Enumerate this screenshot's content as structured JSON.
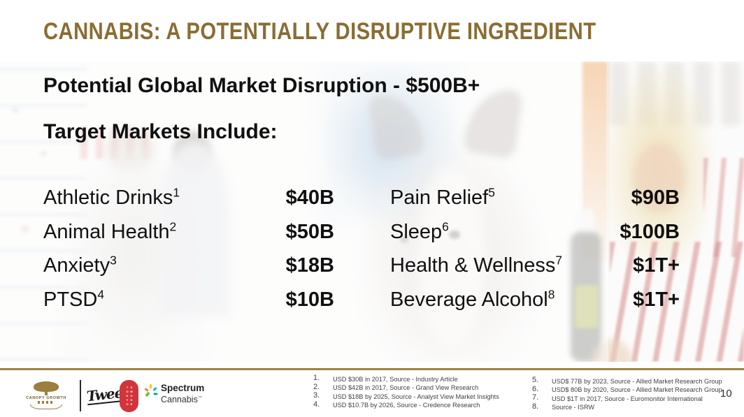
{
  "title": "CANNABIS: A POTENTIALLY DISRUPTIVE INGREDIENT",
  "heading": "Potential Global Market Disruption - $500B+",
  "subheading": "Target Markets Include:",
  "markets": {
    "left": [
      {
        "name": "Athletic Drinks",
        "sup": "1",
        "value": "$40B"
      },
      {
        "name": "Animal Health",
        "sup": "2",
        "value": "$50B"
      },
      {
        "name": "Anxiety",
        "sup": "3",
        "value": "$18B"
      },
      {
        "name": "PTSD",
        "sup": "4",
        "value": "$10B"
      }
    ],
    "right": [
      {
        "name": "Pain Relief",
        "sup": "5",
        "value": "$90B"
      },
      {
        "name": "Sleep",
        "sup": "6",
        "value": "$100B"
      },
      {
        "name": "Health & Wellness",
        "sup": "7",
        "value": "$1T+"
      },
      {
        "name": "Beverage Alcohol",
        "sup": "8",
        "value": "$1T+"
      }
    ]
  },
  "footnotes": {
    "left": [
      {
        "num": "1.",
        "text": "USD $30B in 2017, Source - Industry Article"
      },
      {
        "num": "2.",
        "text": "USD $42B in 2017, Source - Grand View Research"
      },
      {
        "num": "3.",
        "text": "USD $18B by 2025, Source - Analyst View Market Insights"
      },
      {
        "num": "4.",
        "text": "USD $10.7B by 2026, Source - Credence Research"
      }
    ],
    "right": [
      {
        "num": "5.",
        "text": "USD$ 77B by 2023, Source - Allied Market Research Group"
      },
      {
        "num": "6.",
        "text": "USD$ 80B by 2020, Source - Allied Market Research Group"
      },
      {
        "num": "7.",
        "text": "USD $1T in 2017, Source - Euromonitor International"
      },
      {
        "num": "8.",
        "text": "Source - ISRW"
      }
    ]
  },
  "footer": {
    "page_number": "10",
    "logos": {
      "canopy_growth": "CANOPY GROWTH",
      "tweed": "Tweed",
      "tokyo_smoke_col1": "TOKYO",
      "tokyo_smoke_col2": "SMOKE",
      "spectrum_line1": "Spectrum",
      "spectrum_line2": "Cannabis",
      "spectrum_tm": "™"
    }
  },
  "colors": {
    "title_gold": "#8a6d33",
    "divider_gold": "#9b8142",
    "text_black": "#101010",
    "footnote_gray": "#3f3f3f",
    "tokyo_smoke_red": "#d2343c"
  }
}
